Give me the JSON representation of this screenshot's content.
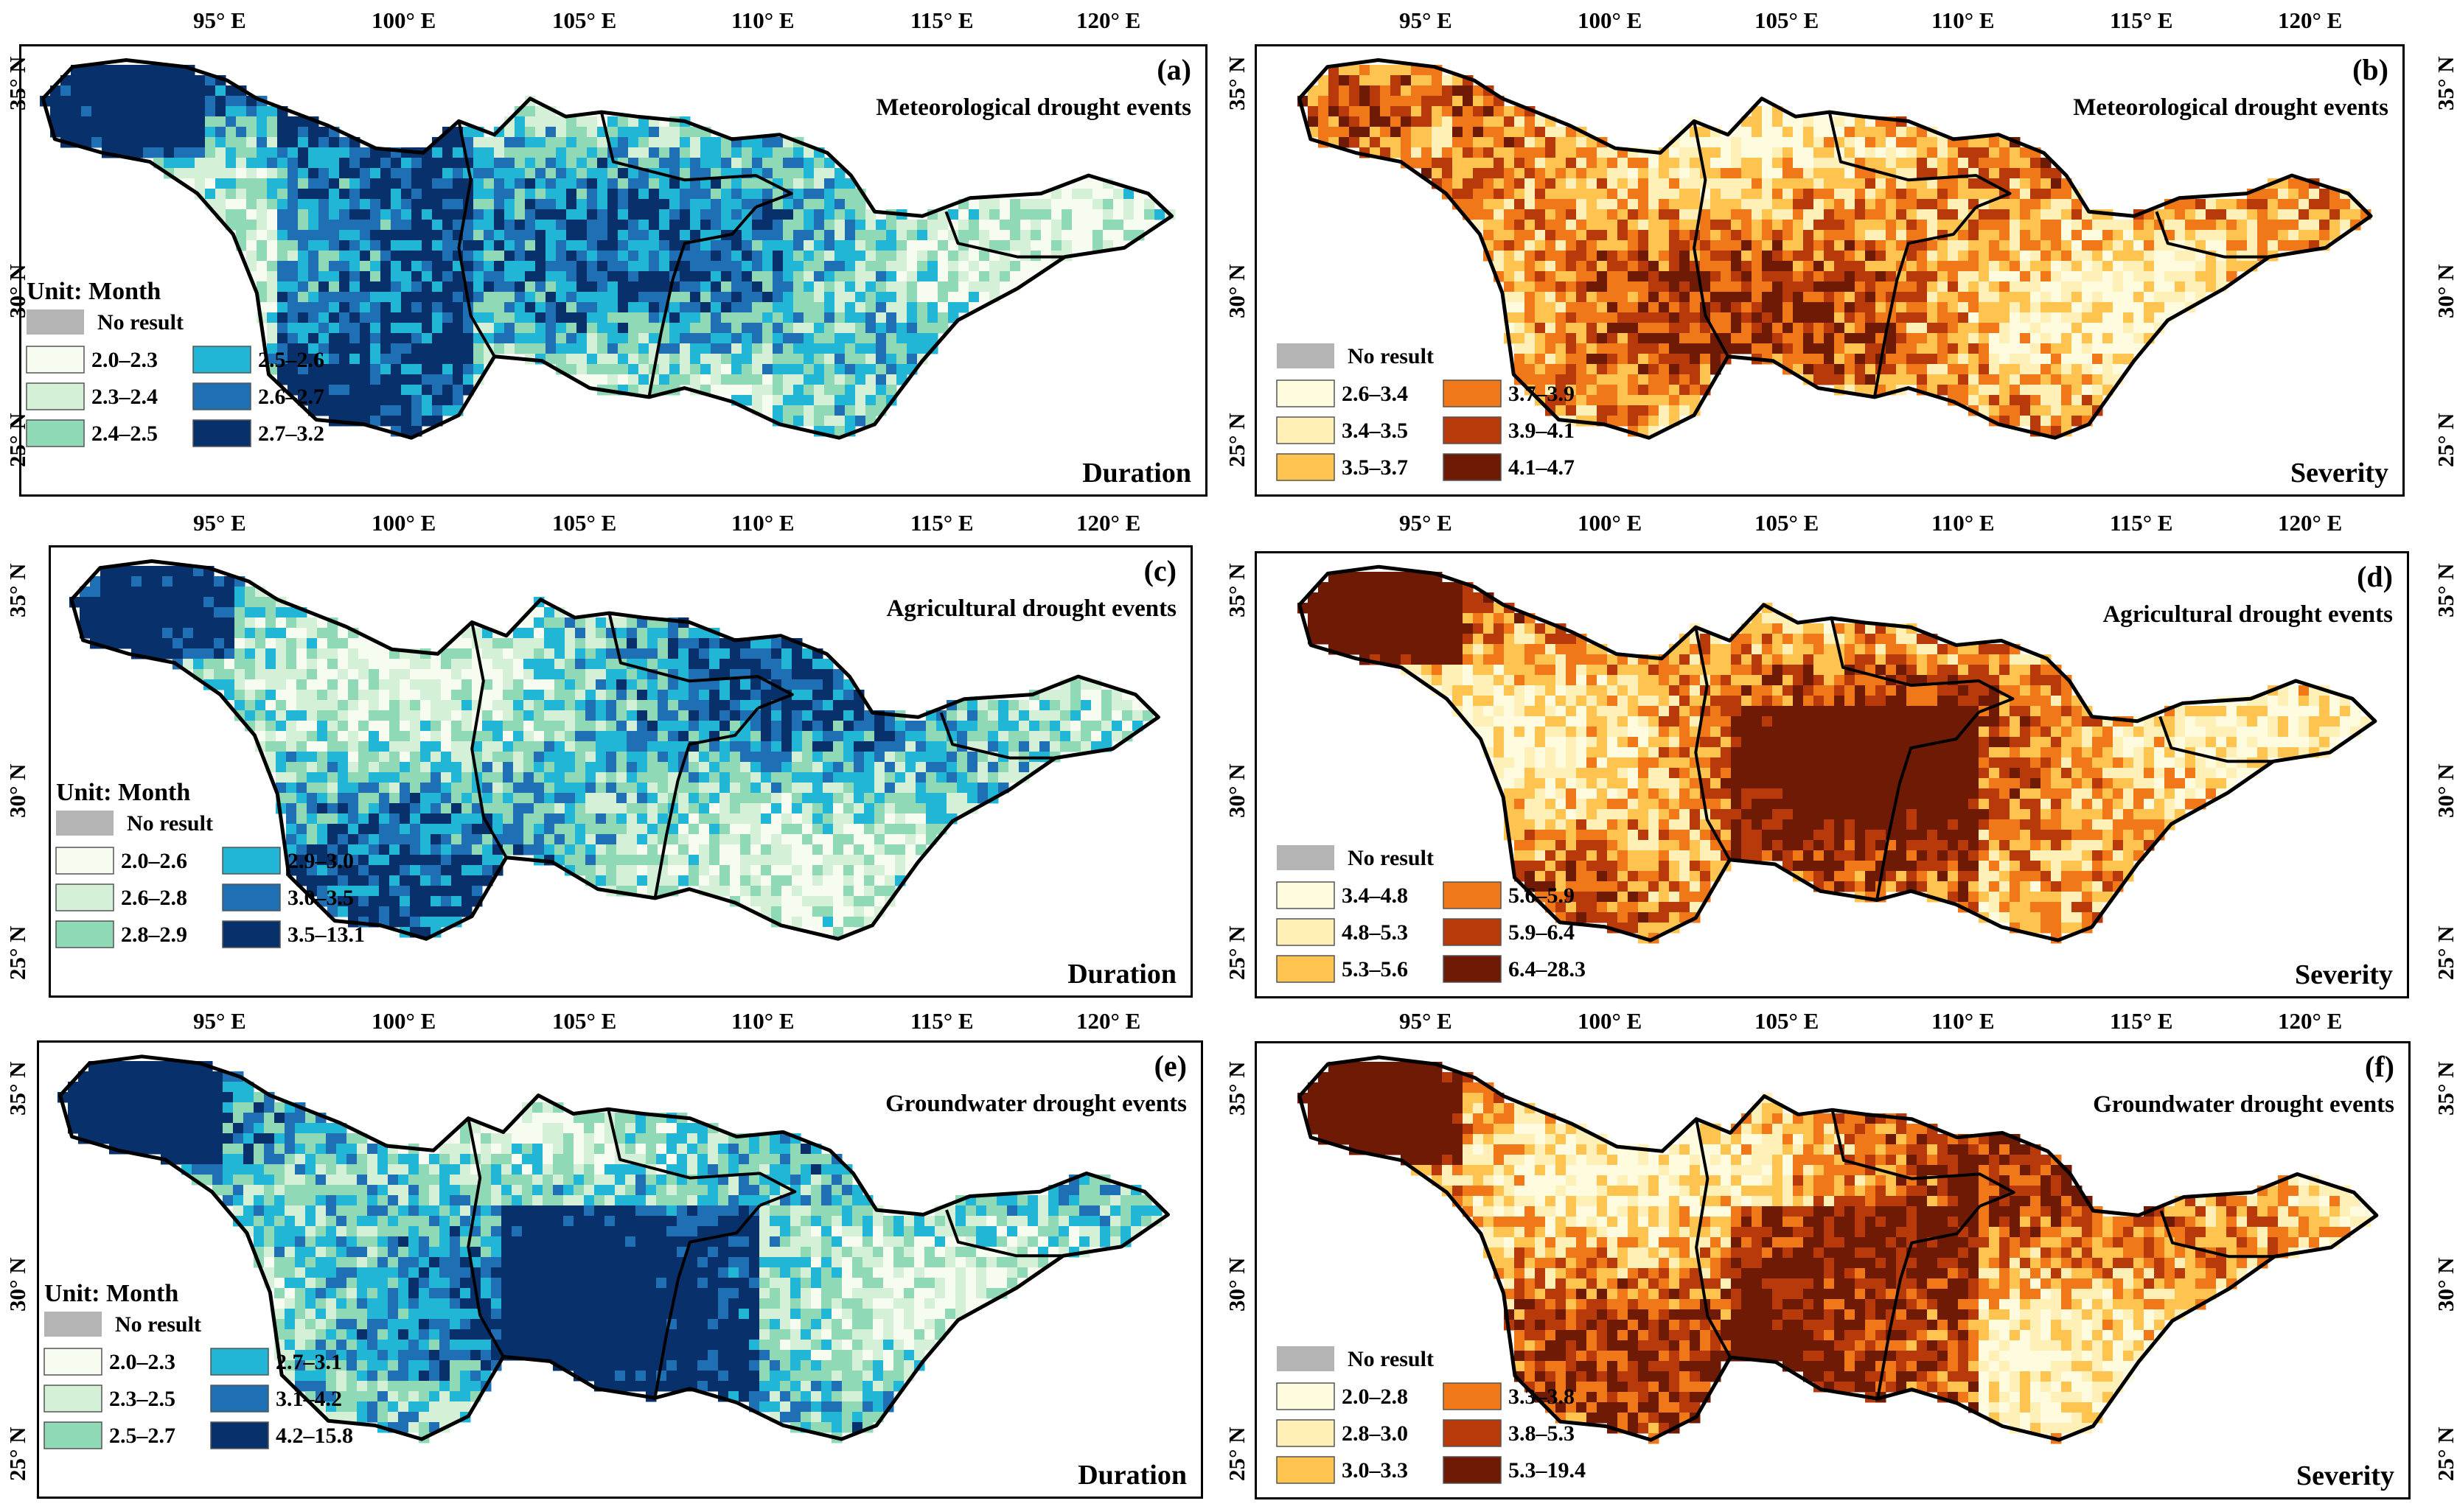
{
  "axes": {
    "lon_labels": [
      "95° E",
      "100° E",
      "105° E",
      "110° E",
      "115° E",
      "120° E"
    ],
    "lat_labels": [
      "35° N",
      "30° N",
      "25° N"
    ]
  },
  "panels": [
    {
      "tag": "(a)",
      "title": "Meteorological drought events",
      "metric": "Duration",
      "unit_label": "Unit: Month",
      "no_result_label": "No result",
      "scheme": "blue",
      "legend": [
        "2.0–2.3",
        "2.3–2.4",
        "2.4–2.5",
        "2.5–2.6",
        "2.6–2.7",
        "2.7–3.2"
      ]
    },
    {
      "tag": "(b)",
      "title": "Meteorological drought events",
      "metric": "Severity",
      "unit_label": null,
      "no_result_label": "No result",
      "scheme": "orange",
      "legend": [
        "2.6–3.4",
        "3.4–3.5",
        "3.5–3.7",
        "3.7–3.9",
        "3.9–4.1",
        "4.1–4.7"
      ]
    },
    {
      "tag": "(c)",
      "title": "Agricultural drought events",
      "metric": "Duration",
      "unit_label": "Unit: Month",
      "no_result_label": "No result",
      "scheme": "blue",
      "legend": [
        "2.0–2.6",
        "2.6–2.8",
        "2.8–2.9",
        "2.9–3.0",
        "3.0–3.5",
        "3.5–13.1"
      ]
    },
    {
      "tag": "(d)",
      "title": "Agricultural drought events",
      "metric": "Severity",
      "unit_label": null,
      "no_result_label": "No result",
      "scheme": "orange",
      "legend": [
        "3.4–4.8",
        "4.8–5.3",
        "5.3–5.6",
        "5.6–5.9",
        "5.9–6.4",
        "6.4–28.3"
      ]
    },
    {
      "tag": "(e)",
      "title": "Groundwater drought events",
      "metric": "Duration",
      "unit_label": "Unit: Month",
      "no_result_label": "No result",
      "scheme": "blue",
      "legend": [
        "2.0–2.3",
        "2.3–2.5",
        "2.5–2.7",
        "2.7–3.1",
        "3.1–4.2",
        "4.2–15.8"
      ]
    },
    {
      "tag": "(f)",
      "title": "Groundwater drought events",
      "metric": "Severity",
      "unit_label": null,
      "no_result_label": "No result",
      "scheme": "orange",
      "legend": [
        "2.0–2.8",
        "2.8–3.0",
        "3.0–3.3",
        "3.3–3.8",
        "3.8–5.3",
        "5.3–19.4"
      ]
    }
  ],
  "colors": {
    "blue": [
      "#f7fcf0",
      "#d4f0d6",
      "#8fd9b6",
      "#22b6d6",
      "#1f6fb4",
      "#08306b"
    ],
    "orange": [
      "#fffbdf",
      "#fff0b8",
      "#fec44f",
      "#f07818",
      "#b83a0a",
      "#6e1a04"
    ],
    "no_result": "#b4b4b4"
  }
}
